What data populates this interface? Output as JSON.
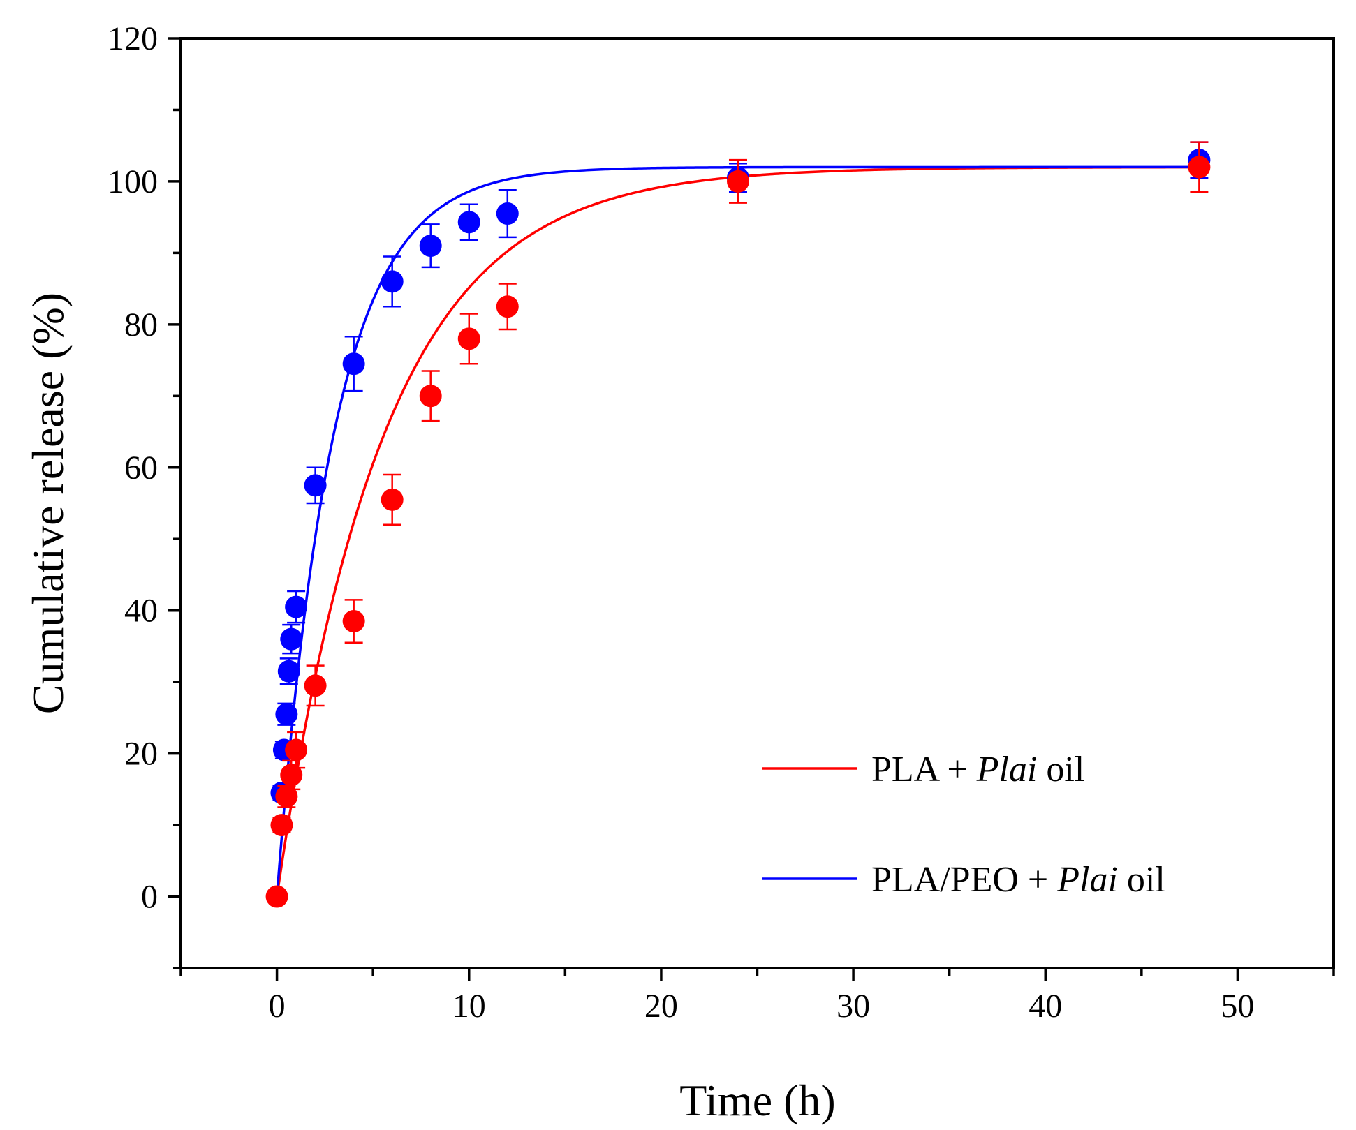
{
  "chart_data": {
    "type": "scatter",
    "xlabel": "Time (h)",
    "ylabel": "Cumulative release (%)",
    "xlim": [
      -5,
      55
    ],
    "ylim": [
      -10,
      120
    ],
    "xticks": [
      0,
      10,
      20,
      30,
      40,
      50
    ],
    "xtick_labels": [
      "0",
      "10",
      "20",
      "30",
      "40",
      "50"
    ],
    "yticks": [
      0,
      20,
      40,
      60,
      80,
      100,
      120
    ],
    "ytick_labels": [
      "0",
      "20",
      "40",
      "60",
      "80",
      "100",
      "120"
    ],
    "legend_position": "bottom-right",
    "series": [
      {
        "name": "PLA + Plai oil",
        "legend_label": {
          "prefix": "PLA + ",
          "italic": "Plai",
          "suffix": " oil"
        },
        "color": "#ff0000",
        "x": [
          0,
          0.25,
          0.5,
          0.75,
          1.0,
          2,
          4,
          6,
          8,
          10,
          12,
          24,
          48
        ],
        "y": [
          0,
          10,
          14,
          17,
          20.5,
          29.5,
          38.5,
          55.5,
          70,
          78,
          82.5,
          100,
          102
        ],
        "err": [
          0,
          1.0,
          1.5,
          2.0,
          2.5,
          2.8,
          3.0,
          3.5,
          3.5,
          3.5,
          3.2,
          3.0,
          3.5
        ],
        "fit": {
          "model": "first-order",
          "ymax": 102,
          "k": 0.18
        }
      },
      {
        "name": "PLA/PEO + Plai oil",
        "legend_label": {
          "prefix": "PLA/PEO + ",
          "italic": "Plai",
          "suffix": " oil"
        },
        "color": "#0000ff",
        "x": [
          0.25,
          0.375,
          0.5,
          0.625,
          0.75,
          1.0,
          2,
          4,
          6,
          8,
          10,
          12,
          24,
          48
        ],
        "y": [
          14.5,
          20.5,
          25.5,
          31.5,
          36,
          40.5,
          57.5,
          74.5,
          86,
          91,
          94.3,
          95.5,
          100.5,
          103
        ],
        "err": [
          1.0,
          1.2,
          1.5,
          1.8,
          2.0,
          2.2,
          2.5,
          3.8,
          3.5,
          3.0,
          2.5,
          3.3,
          2.0,
          2.5
        ],
        "fit": {
          "model": "first-order",
          "ymax": 102,
          "k": 0.34
        }
      }
    ]
  }
}
